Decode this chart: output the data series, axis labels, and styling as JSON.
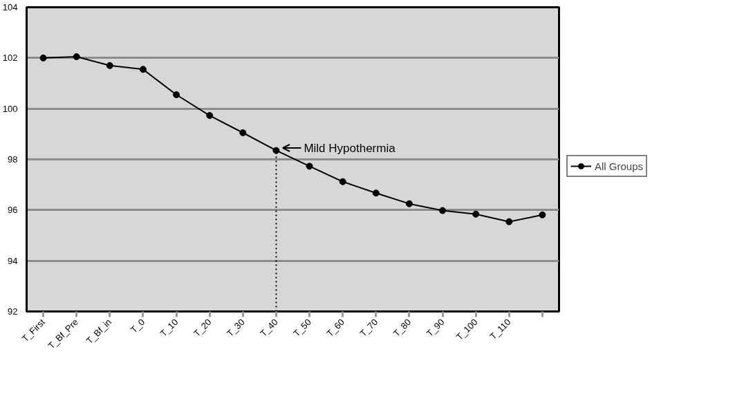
{
  "chart_data": {
    "type": "line",
    "categories": [
      "T_First",
      "T_Bf_Pre",
      "T_Bf_in",
      "T_0",
      "T_10",
      "T_20",
      "T_30",
      "T_40",
      "T_50",
      "T_60",
      "T_70",
      "T_80",
      "T_90",
      "T_100",
      "T_110",
      null
    ],
    "series": [
      {
        "name": "All Groups",
        "color": "#000000",
        "values": [
          102.0,
          102.05,
          101.7,
          101.55,
          100.55,
          99.73,
          99.05,
          98.35,
          97.73,
          97.12,
          96.67,
          96.25,
          95.98,
          95.84,
          95.54,
          95.81
        ]
      }
    ],
    "ylim": [
      92,
      104
    ],
    "yticks": [
      92,
      94,
      96,
      98,
      100,
      102,
      104
    ],
    "ref_lines": [
      {
        "axis": "x",
        "value": "T_40",
        "label": null,
        "color": "#000000",
        "line_style": "dotted"
      }
    ],
    "annotations": [
      {
        "text": "Mild Hypothermia",
        "x": "T_40",
        "y": 98.35
      }
    ],
    "grid": "y",
    "legend": "right",
    "marker": "circle",
    "line_style": "solid"
  }
}
